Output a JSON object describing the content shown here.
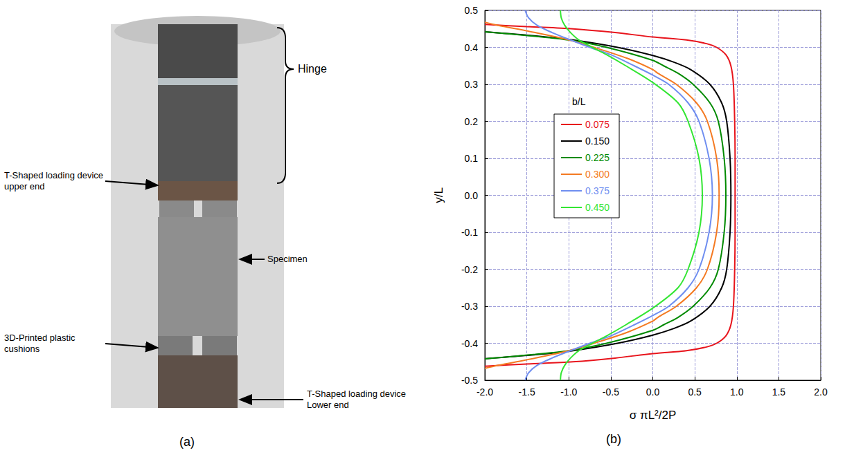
{
  "figure_a": {
    "label": "(a)",
    "callouts": {
      "hinge": "Hinge",
      "upper": "T-Shaped loading device upper end",
      "specimen": "Specimen",
      "cushions": "3D-Printed plastic cushions",
      "lower": "T-Shaped loading device Lower end"
    }
  },
  "chart_data": {
    "type": "line",
    "panel_label": "(b)",
    "x_label": "σ πL²/2P",
    "y_label": "y/L",
    "legend_title": "b/L",
    "legend": "left",
    "grid": true,
    "xlim": [
      -2,
      2
    ],
    "xticks": [
      {
        "value": -2,
        "label": "-2.0"
      },
      -1.5,
      {
        "value": -1,
        "label": "-1.0"
      },
      -0.5,
      {
        "value": 0,
        "label": "0.0"
      },
      0.5,
      {
        "value": 1,
        "label": "1.0"
      },
      1.5,
      {
        "value": 2,
        "label": "2.0"
      }
    ],
    "ylim": [
      -0.5,
      0.5
    ],
    "yticks": [
      -0.5,
      -0.4,
      -0.3,
      -0.2,
      -0.1,
      {
        "value": 0,
        "label": "0.0"
      },
      0.1,
      0.2,
      0.3,
      0.4,
      0.5
    ],
    "series": [
      {
        "name": "0.075",
        "color": "#e8141c",
        "y": [
          -0.462,
          -0.456,
          -0.45,
          -0.44,
          -0.428,
          -0.42,
          -0.41,
          -0.4,
          -0.38,
          -0.35,
          -0.3,
          -0.2,
          -0.1,
          0,
          0.1,
          0.2,
          0.3,
          0.35,
          0.38,
          0.4,
          0.41,
          0.42,
          0.428,
          0.44,
          0.45,
          0.456,
          0.462
        ],
        "x": [
          -2,
          -1.5,
          -0.95,
          -0.45,
          0,
          0.4,
          0.64,
          0.76,
          0.87,
          0.93,
          0.96,
          0.975,
          0.98,
          0.98,
          0.98,
          0.975,
          0.96,
          0.93,
          0.87,
          0.76,
          0.64,
          0.4,
          0,
          -0.45,
          -0.95,
          -1.5,
          -2
        ]
      },
      {
        "name": "0.150",
        "color": "#000000",
        "y": [
          -0.442,
          -0.43,
          -0.42,
          -0.4,
          -0.378,
          -0.36,
          -0.34,
          -0.3,
          -0.25,
          -0.2,
          -0.1,
          0,
          0.1,
          0.2,
          0.25,
          0.3,
          0.34,
          0.36,
          0.378,
          0.4,
          0.42,
          0.43,
          0.442
        ],
        "x": [
          -2,
          -1.35,
          -0.95,
          -0.42,
          0,
          0.25,
          0.45,
          0.68,
          0.82,
          0.88,
          0.92,
          0.93,
          0.92,
          0.88,
          0.82,
          0.68,
          0.45,
          0.25,
          0,
          -0.42,
          -0.95,
          -1.35,
          -2
        ]
      },
      {
        "name": "0.225",
        "color": "#008a00",
        "y": [
          -0.442,
          -0.43,
          -0.42,
          -0.4,
          -0.365,
          -0.35,
          -0.33,
          -0.3,
          -0.25,
          -0.2,
          -0.1,
          0,
          0.1,
          0.2,
          0.25,
          0.3,
          0.33,
          0.35,
          0.365,
          0.4,
          0.42,
          0.43,
          0.442
        ],
        "x": [
          -2,
          -1.4,
          -1,
          -0.55,
          0,
          0.13,
          0.3,
          0.48,
          0.68,
          0.78,
          0.85,
          0.87,
          0.85,
          0.78,
          0.68,
          0.48,
          0.3,
          0.13,
          0,
          -0.55,
          -1,
          -1.4,
          -2
        ]
      },
      {
        "name": "0.300",
        "color": "#f47a22",
        "y": [
          -0.468,
          -0.46,
          -0.44,
          -0.42,
          -0.4,
          -0.37,
          -0.34,
          -0.33,
          -0.3,
          -0.25,
          -0.2,
          -0.1,
          0,
          0.1,
          0.2,
          0.25,
          0.3,
          0.33,
          0.34,
          0.37,
          0.4,
          0.42,
          0.44,
          0.46,
          0.468
        ],
        "x": [
          -2,
          -1.85,
          -1.4,
          -1,
          -0.7,
          -0.3,
          0,
          0.06,
          0.28,
          0.52,
          0.65,
          0.76,
          0.79,
          0.76,
          0.65,
          0.52,
          0.28,
          0.06,
          0,
          -0.3,
          -0.7,
          -1,
          -1.4,
          -1.85,
          -2
        ]
      },
      {
        "name": "0.375",
        "color": "#6f8ef0",
        "y": [
          -0.5,
          -0.48,
          -0.46,
          -0.44,
          -0.42,
          -0.4,
          -0.38,
          -0.35,
          -0.325,
          -0.3,
          -0.25,
          -0.2,
          -0.1,
          0,
          0.1,
          0.2,
          0.25,
          0.3,
          0.325,
          0.35,
          0.38,
          0.4,
          0.42,
          0.44,
          0.46,
          0.48,
          0.5
        ],
        "x": [
          -1.52,
          -1.48,
          -1.38,
          -1.2,
          -0.98,
          -0.75,
          -0.5,
          -0.22,
          0,
          0.19,
          0.42,
          0.55,
          0.67,
          0.71,
          0.67,
          0.55,
          0.42,
          0.19,
          0,
          -0.22,
          -0.5,
          -0.75,
          -0.98,
          -1.2,
          -1.38,
          -1.48,
          -1.52
        ]
      },
      {
        "name": "0.450",
        "color": "#33e633",
        "y": [
          -0.5,
          -0.48,
          -0.46,
          -0.44,
          -0.42,
          -0.4,
          -0.38,
          -0.35,
          -0.305,
          -0.25,
          -0.2,
          -0.1,
          0,
          0.1,
          0.2,
          0.25,
          0.305,
          0.35,
          0.38,
          0.4,
          0.42,
          0.44,
          0.46,
          0.48,
          0.5
        ],
        "x": [
          -1.1,
          -1.09,
          -1.05,
          -0.98,
          -0.88,
          -0.72,
          -0.55,
          -0.32,
          0,
          0.3,
          0.42,
          0.55,
          0.59,
          0.55,
          0.42,
          0.3,
          0,
          -0.32,
          -0.55,
          -0.72,
          -0.88,
          -0.98,
          -1.05,
          -1.09,
          -1.1
        ]
      }
    ]
  }
}
